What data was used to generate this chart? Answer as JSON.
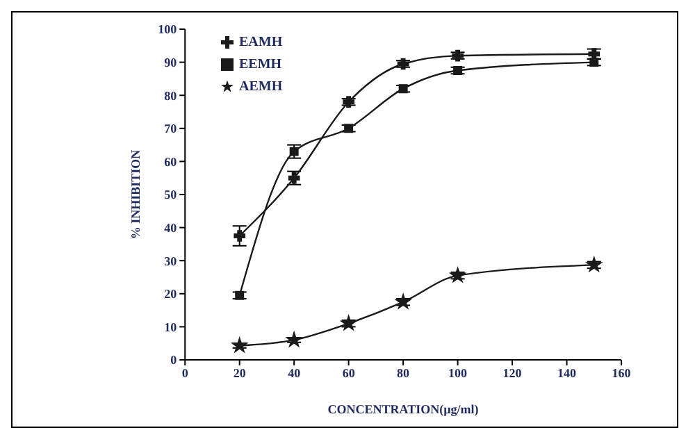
{
  "chart_data": {
    "type": "line",
    "xlabel": "CONCENTRATION(µg/ml)",
    "ylabel": "% INHIBITION",
    "x": [
      20,
      40,
      60,
      80,
      100,
      150
    ],
    "series": [
      {
        "name": "EAMH",
        "color": "#1a1a1a",
        "marker": "cross",
        "values": [
          37.5,
          55,
          78,
          89.5,
          92,
          92.5
        ],
        "errors": [
          3,
          2,
          1,
          1,
          1,
          1.5
        ]
      },
      {
        "name": "EEMH",
        "color": "#1a1a1a",
        "marker": "square",
        "values": [
          19.5,
          63,
          70,
          82,
          87.5,
          90
        ],
        "errors": [
          1,
          2,
          1,
          1,
          1,
          1
        ]
      },
      {
        "name": "AEMH",
        "color": "#1a1a1a",
        "marker": "star",
        "values": [
          4.3,
          6,
          11,
          17.5,
          25.5,
          28.7
        ],
        "errors": [
          0.7,
          0.7,
          1,
          1,
          1,
          1
        ]
      }
    ],
    "xlim": [
      0,
      160
    ],
    "xticks": [
      0,
      20,
      40,
      60,
      80,
      100,
      120,
      140,
      160
    ],
    "ylim": [
      0,
      100
    ],
    "yticks": [
      0,
      10,
      20,
      30,
      40,
      50,
      60,
      70,
      80,
      90,
      100
    ],
    "grid": false,
    "legend": "top left",
    "line_style": "solid"
  }
}
